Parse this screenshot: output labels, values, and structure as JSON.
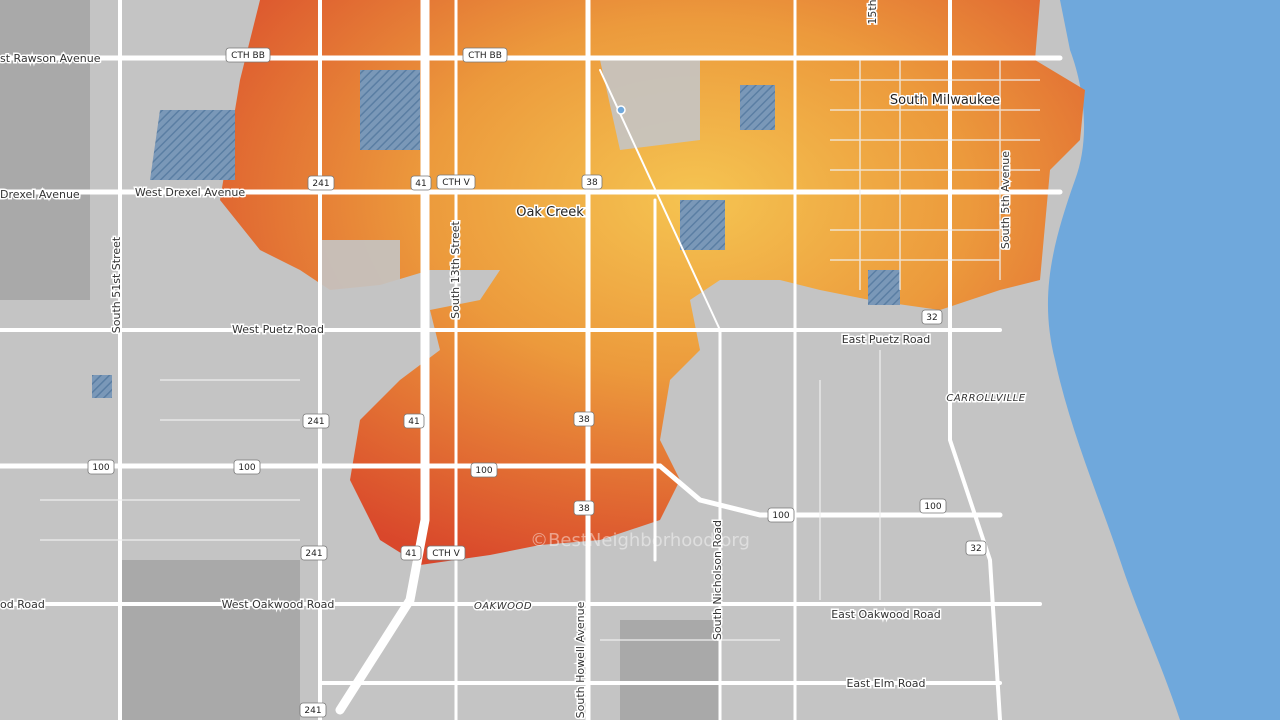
{
  "roads": [
    "st Rawson Avenue",
    "West Drexel Avenue",
    "Drexel Avenue",
    "West Puetz Road",
    "East Puetz Road",
    "West Oakwood Road",
    "od Road",
    "East Oakwood Road",
    "East Elm Road",
    "South 51st Street",
    "South 13th Street",
    "South Howell Avenue",
    "South Nicholson Road",
    "South 5th Avenue",
    "15th"
  ],
  "places": [
    "South Milwaukee",
    "Oak Creek",
    "CARROLLVILLE",
    "OAKWOOD"
  ],
  "shields": [
    "CTH BB",
    "CTH BB",
    "241",
    "41",
    "CTH V",
    "38",
    "32",
    "241",
    "41",
    "38",
    "100",
    "100",
    "100",
    "38",
    "100",
    "100",
    "32",
    "241",
    "41",
    "CTH V",
    "241"
  ],
  "watermark": "©BestNeighborhood.org"
}
